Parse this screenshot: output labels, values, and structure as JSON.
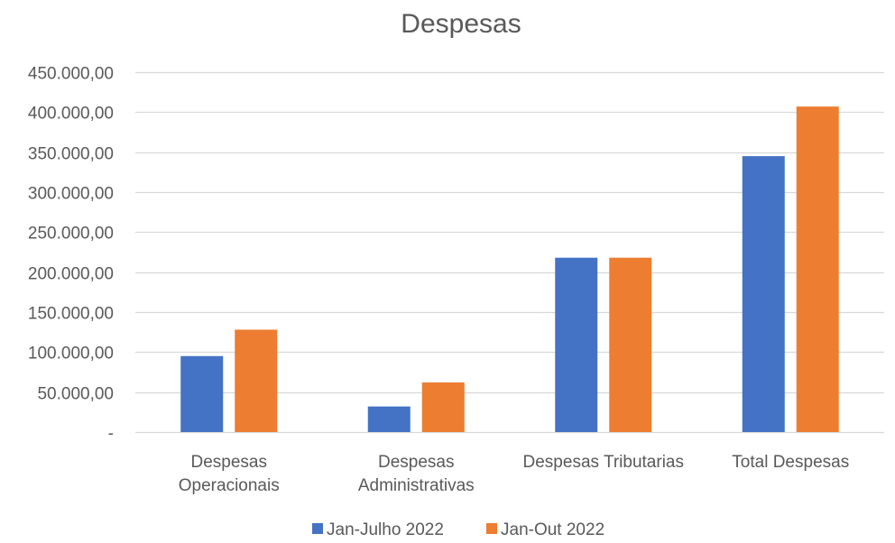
{
  "chart_data": {
    "type": "bar",
    "title": "Despesas",
    "xlabel": "",
    "ylabel": "",
    "categories": [
      [
        "Despesas",
        "Operacionais"
      ],
      [
        "Despesas",
        "Administrativas"
      ],
      [
        "Despesas Tributarias"
      ],
      [
        "Total Despesas"
      ]
    ],
    "series": [
      {
        "name": "Jan-Julho 2022",
        "color": "#4472C4",
        "values": [
          95000,
          32000,
          218000,
          345000
        ]
      },
      {
        "name": "Jan-Out 2022",
        "color": "#ED7D31",
        "values": [
          128000,
          62000,
          218000,
          407000
        ]
      }
    ],
    "ylim": [
      0,
      450000
    ],
    "y_ticks": [
      {
        "value": 0,
        "label": "-"
      },
      {
        "value": 50000,
        "label": "50.000,00"
      },
      {
        "value": 100000,
        "label": "100.000,00"
      },
      {
        "value": 150000,
        "label": "150.000,00"
      },
      {
        "value": 200000,
        "label": "200.000,00"
      },
      {
        "value": 250000,
        "label": "250.000,00"
      },
      {
        "value": 300000,
        "label": "300.000,00"
      },
      {
        "value": 350000,
        "label": "350.000,00"
      },
      {
        "value": 400000,
        "label": "400.000,00"
      },
      {
        "value": 450000,
        "label": "450.000,00"
      }
    ],
    "grid": true,
    "legend_position": "bottom",
    "gridline_color": "#D9D9D9",
    "text_color": "#595959"
  }
}
